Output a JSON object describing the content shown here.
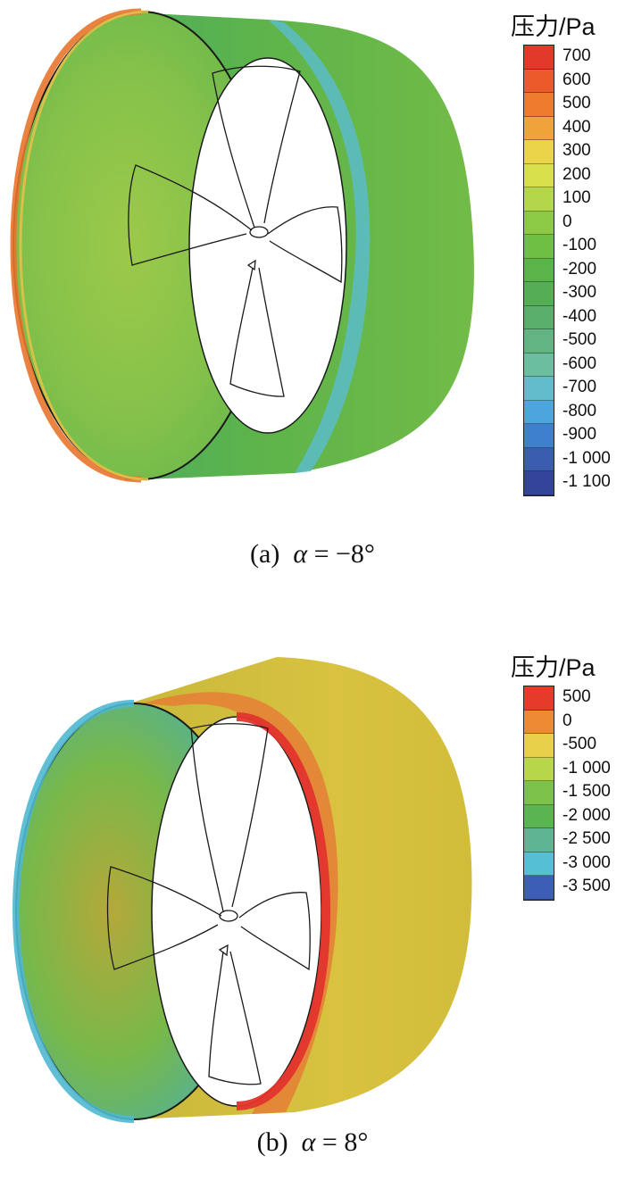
{
  "panels": [
    {
      "id": "a",
      "caption_label": "(a)",
      "caption_symbol": "α",
      "caption_value": "= −8°",
      "legend": {
        "title": "压力/Pa",
        "ticks": [
          "700",
          "600",
          "500",
          "400",
          "300",
          "200",
          "100",
          "0",
          "-100",
          "-200",
          "-300",
          "-400",
          "-500",
          "-600",
          "-700",
          "-800",
          "-900",
          "-1 000",
          "-1 100"
        ],
        "colors": [
          "#e23a2a",
          "#ea5a2a",
          "#ef7c2e",
          "#f0a33a",
          "#e9d44a",
          "#d7e04a",
          "#b4d64a",
          "#8cc944",
          "#6ebf43",
          "#5bb44a",
          "#55ae55",
          "#5aae6b",
          "#62b582",
          "#6bbfa0",
          "#62bccc",
          "#4aa6dc",
          "#3f80cc",
          "#3a5db0",
          "#33449a"
        ]
      }
    },
    {
      "id": "b",
      "caption_label": "(b)",
      "caption_symbol": "α",
      "caption_value": "= 8°",
      "legend": {
        "title": "压力/Pa",
        "ticks": [
          "500",
          "0",
          "-500",
          "-1 000",
          "-1 500",
          "-2 000",
          "-2 500",
          "-3 000",
          "-3 500"
        ],
        "colors": [
          "#e63a2a",
          "#ef8a34",
          "#e9d04a",
          "#b8d64a",
          "#7cc24a",
          "#5ab452",
          "#5fb493",
          "#55bfd6",
          "#3c5eb4"
        ]
      }
    }
  ]
}
